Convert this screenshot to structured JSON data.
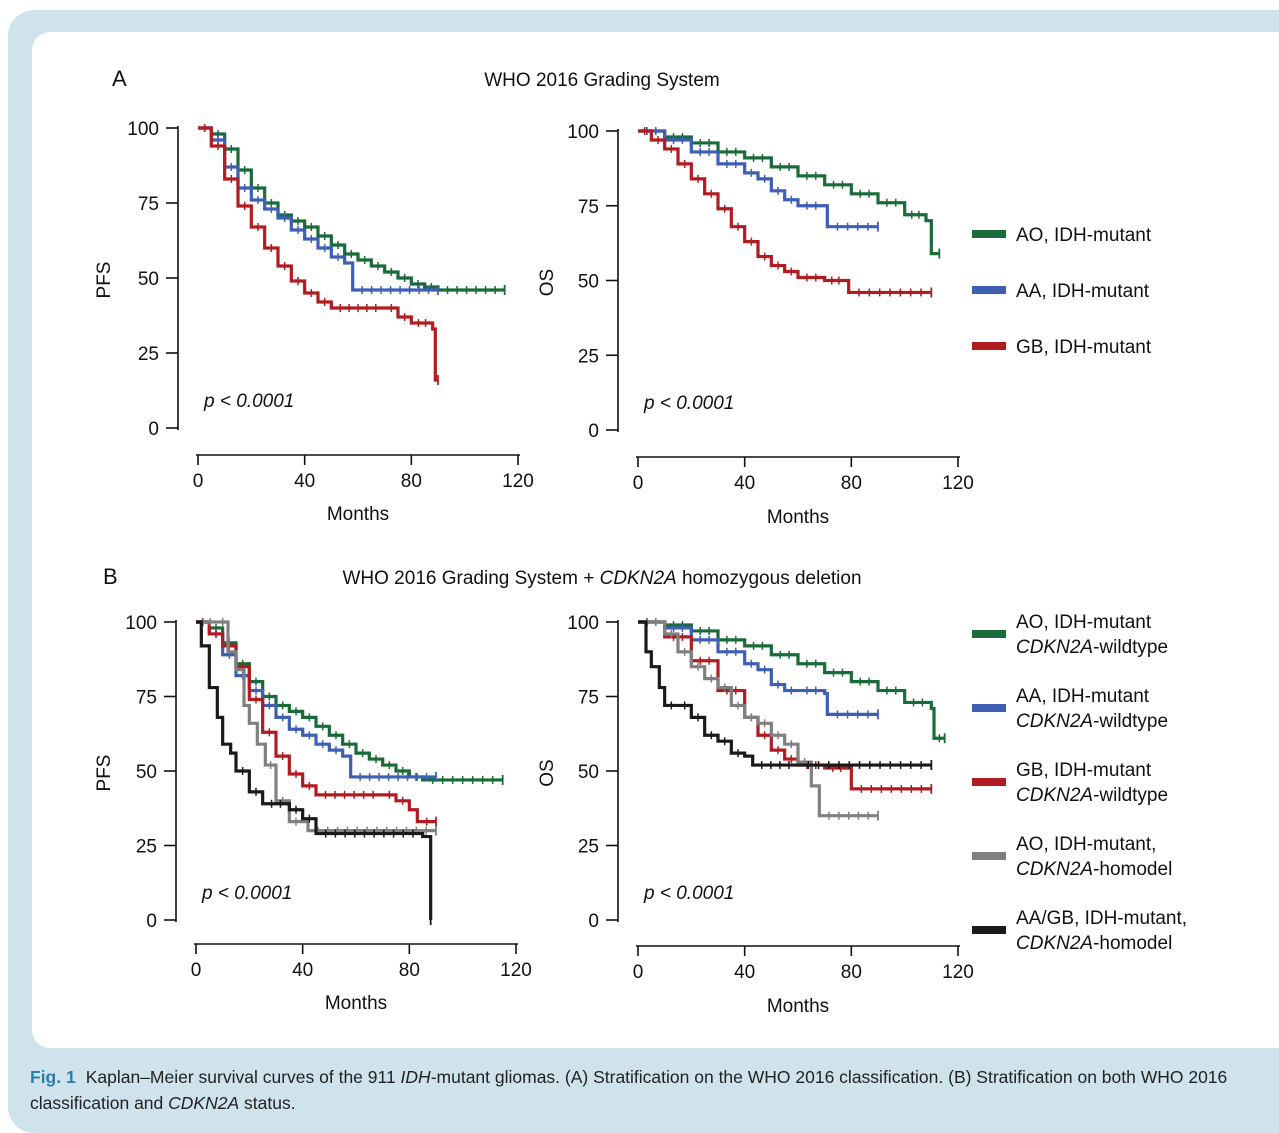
{
  "panels": {
    "A": {
      "letter": "A",
      "title": "WHO 2016 Grading System"
    },
    "B": {
      "letter": "B",
      "title_pre": "WHO 2016 Grading System + ",
      "title_gene": "CDKN2A",
      "title_post": " homozygous deletion"
    }
  },
  "legend_A": [
    {
      "line1": "AO, IDH-mutant",
      "color": "#1a6b3a"
    },
    {
      "line1": "AA, IDH-mutant",
      "color": "#3f5fb5"
    },
    {
      "line1": "GB, IDH-mutant",
      "color": "#b01c22"
    }
  ],
  "legend_B": [
    {
      "line1": "AO, IDH-mutant",
      "line2_gene": "CDKN2A",
      "line2_rest": "-wildtype",
      "color": "#1a6b3a"
    },
    {
      "line1": "AA, IDH-mutant",
      "line2_gene": "CDKN2A",
      "line2_rest": "-wildtype",
      "color": "#3f5fb5"
    },
    {
      "line1": "GB, IDH-mutant",
      "line2_gene": "CDKN2A",
      "line2_rest": "-wildtype",
      "color": "#b01c22"
    },
    {
      "line1": "AO, IDH-mutant,",
      "line2_gene": "CDKN2A",
      "line2_rest": "-homodel",
      "color": "#808080"
    },
    {
      "line1": "AA/GB, IDH-mutant,",
      "line2_gene": "CDKN2A",
      "line2_rest": "-homodel",
      "color": "#1a1a1a"
    }
  ],
  "caption": {
    "label": "Fig. 1",
    "part1": "Kaplan–Meier survival curves of the 911 ",
    "part1_italic": "IDH",
    "part2": "-mutant gliomas. (A) Stratification on the WHO 2016 classification. (B) Stratification on both WHO 2016 classification and ",
    "part2_italic": "CDKN2A",
    "part3": " status."
  },
  "chart_data": [
    {
      "id": "A-PFS",
      "type": "line",
      "xlabel": "Months",
      "ylabel": "PFS",
      "xlim": [
        0,
        120
      ],
      "ylim": [
        0,
        100
      ],
      "xticks": [
        "0",
        "40",
        "80",
        "120"
      ],
      "yticks": [
        "0",
        "25",
        "50",
        "75",
        "100"
      ],
      "annotation": "p < 0.0001",
      "series": [
        {
          "color": "#1a6b3a",
          "points": [
            [
              0,
              100
            ],
            [
              5,
              98
            ],
            [
              10,
              93
            ],
            [
              15,
              86
            ],
            [
              20,
              80
            ],
            [
              25,
              75
            ],
            [
              30,
              71
            ],
            [
              35,
              69
            ],
            [
              40,
              67
            ],
            [
              45,
              64
            ],
            [
              50,
              61
            ],
            [
              55,
              58
            ],
            [
              60,
              56
            ],
            [
              65,
              54
            ],
            [
              70,
              52
            ],
            [
              75,
              50
            ],
            [
              80,
              48
            ],
            [
              85,
              47
            ],
            [
              90,
              46
            ],
            [
              115,
              46
            ]
          ]
        },
        {
          "color": "#3f5fb5",
          "points": [
            [
              0,
              100
            ],
            [
              5,
              96
            ],
            [
              10,
              87
            ],
            [
              15,
              80
            ],
            [
              20,
              76
            ],
            [
              25,
              73
            ],
            [
              30,
              70
            ],
            [
              35,
              66
            ],
            [
              40,
              63
            ],
            [
              45,
              60
            ],
            [
              50,
              57
            ],
            [
              55,
              55
            ],
            [
              58,
              46
            ],
            [
              90,
              46
            ]
          ]
        },
        {
          "color": "#b01c22",
          "points": [
            [
              0,
              100
            ],
            [
              5,
              94
            ],
            [
              10,
              83
            ],
            [
              15,
              74
            ],
            [
              20,
              67
            ],
            [
              25,
              60
            ],
            [
              30,
              54
            ],
            [
              35,
              49
            ],
            [
              40,
              45
            ],
            [
              45,
              42
            ],
            [
              50,
              40
            ],
            [
              70,
              40
            ],
            [
              75,
              37
            ],
            [
              80,
              35
            ],
            [
              88,
              33
            ],
            [
              89,
              16
            ],
            [
              90,
              16
            ]
          ]
        }
      ]
    },
    {
      "id": "A-OS",
      "type": "line",
      "xlabel": "Months",
      "ylabel": "OS",
      "xlim": [
        0,
        120
      ],
      "ylim": [
        0,
        100
      ],
      "xticks": [
        "0",
        "40",
        "80",
        "120"
      ],
      "yticks": [
        "0",
        "25",
        "50",
        "75",
        "100"
      ],
      "annotation": "p < 0.0001",
      "series": [
        {
          "color": "#1a6b3a",
          "points": [
            [
              0,
              100
            ],
            [
              10,
              98
            ],
            [
              20,
              96
            ],
            [
              30,
              93
            ],
            [
              40,
              91
            ],
            [
              50,
              88
            ],
            [
              60,
              85
            ],
            [
              70,
              82
            ],
            [
              80,
              79
            ],
            [
              90,
              76
            ],
            [
              100,
              72
            ],
            [
              108,
              70
            ],
            [
              110,
              59
            ],
            [
              113,
              59
            ]
          ]
        },
        {
          "color": "#3f5fb5",
          "points": [
            [
              0,
              100
            ],
            [
              10,
              97
            ],
            [
              20,
              93
            ],
            [
              30,
              89
            ],
            [
              40,
              86
            ],
            [
              45,
              84
            ],
            [
              50,
              80
            ],
            [
              55,
              77
            ],
            [
              60,
              75
            ],
            [
              70,
              75
            ],
            [
              71,
              68
            ],
            [
              90,
              68
            ]
          ]
        },
        {
          "color": "#b01c22",
          "points": [
            [
              0,
              100
            ],
            [
              5,
              97
            ],
            [
              10,
              94
            ],
            [
              15,
              89
            ],
            [
              20,
              84
            ],
            [
              25,
              79
            ],
            [
              30,
              74
            ],
            [
              35,
              68
            ],
            [
              40,
              63
            ],
            [
              45,
              58
            ],
            [
              50,
              55
            ],
            [
              55,
              53
            ],
            [
              60,
              51
            ],
            [
              70,
              50
            ],
            [
              78,
              50
            ],
            [
              79,
              46
            ],
            [
              110,
              46
            ]
          ]
        }
      ]
    },
    {
      "id": "B-PFS",
      "type": "line",
      "xlabel": "Months",
      "ylabel": "PFS",
      "xlim": [
        0,
        120
      ],
      "ylim": [
        0,
        100
      ],
      "xticks": [
        "0",
        "40",
        "80",
        "120"
      ],
      "yticks": [
        "0",
        "25",
        "50",
        "75",
        "100"
      ],
      "annotation": "p < 0.0001",
      "series": [
        {
          "color": "#1a6b3a",
          "points": [
            [
              0,
              100
            ],
            [
              5,
              98
            ],
            [
              10,
              93
            ],
            [
              15,
              86
            ],
            [
              20,
              80
            ],
            [
              25,
              75
            ],
            [
              30,
              72
            ],
            [
              35,
              70
            ],
            [
              40,
              68
            ],
            [
              45,
              65
            ],
            [
              50,
              62
            ],
            [
              55,
              59
            ],
            [
              60,
              56
            ],
            [
              65,
              54
            ],
            [
              70,
              52
            ],
            [
              75,
              50
            ],
            [
              80,
              48
            ],
            [
              85,
              47
            ],
            [
              115,
              47
            ]
          ]
        },
        {
          "color": "#3f5fb5",
          "points": [
            [
              0,
              100
            ],
            [
              5,
              96
            ],
            [
              10,
              89
            ],
            [
              15,
              82
            ],
            [
              20,
              77
            ],
            [
              25,
              72
            ],
            [
              30,
              68
            ],
            [
              35,
              64
            ],
            [
              40,
              62
            ],
            [
              45,
              59
            ],
            [
              50,
              57
            ],
            [
              55,
              55
            ],
            [
              58,
              48
            ],
            [
              90,
              48
            ]
          ]
        },
        {
          "color": "#b01c22",
          "points": [
            [
              0,
              100
            ],
            [
              5,
              96
            ],
            [
              10,
              92
            ],
            [
              15,
              85
            ],
            [
              20,
              74
            ],
            [
              25,
              63
            ],
            [
              30,
              55
            ],
            [
              35,
              49
            ],
            [
              40,
              45
            ],
            [
              45,
              42
            ],
            [
              70,
              42
            ],
            [
              75,
              40
            ],
            [
              80,
              37
            ],
            [
              83,
              33
            ],
            [
              90,
              33
            ]
          ]
        },
        {
          "color": "#808080",
          "points": [
            [
              0,
              100
            ],
            [
              8,
              100
            ],
            [
              12,
              90
            ],
            [
              15,
              84
            ],
            [
              18,
              72
            ],
            [
              20,
              66
            ],
            [
              23,
              59
            ],
            [
              26,
              52
            ],
            [
              30,
              40
            ],
            [
              35,
              33
            ],
            [
              40,
              33
            ],
            [
              42,
              30
            ],
            [
              90,
              30
            ]
          ]
        },
        {
          "color": "#1a1a1a",
          "points": [
            [
              0,
              100
            ],
            [
              2,
              92
            ],
            [
              5,
              78
            ],
            [
              8,
              68
            ],
            [
              10,
              59
            ],
            [
              13,
              56
            ],
            [
              15,
              50
            ],
            [
              20,
              43
            ],
            [
              25,
              39
            ],
            [
              35,
              37
            ],
            [
              40,
              34
            ],
            [
              45,
              29
            ],
            [
              85,
              28
            ],
            [
              88,
              28
            ],
            [
              88,
              0
            ]
          ]
        }
      ]
    },
    {
      "id": "B-OS",
      "type": "line",
      "xlabel": "Months",
      "ylabel": "OS",
      "xlim": [
        0,
        120
      ],
      "ylim": [
        0,
        100
      ],
      "xticks": [
        "0",
        "40",
        "80",
        "120"
      ],
      "yticks": [
        "0",
        "25",
        "50",
        "75",
        "100"
      ],
      "annotation": "p < 0.0001",
      "series": [
        {
          "color": "#1a6b3a",
          "points": [
            [
              0,
              100
            ],
            [
              10,
              99
            ],
            [
              20,
              97
            ],
            [
              30,
              94
            ],
            [
              40,
              92
            ],
            [
              50,
              89
            ],
            [
              60,
              86
            ],
            [
              70,
              83
            ],
            [
              80,
              80
            ],
            [
              90,
              77
            ],
            [
              100,
              73
            ],
            [
              110,
              71
            ],
            [
              111,
              61
            ],
            [
              115,
              61
            ]
          ]
        },
        {
          "color": "#3f5fb5",
          "points": [
            [
              0,
              100
            ],
            [
              10,
              98
            ],
            [
              20,
              94
            ],
            [
              30,
              90
            ],
            [
              40,
              86
            ],
            [
              45,
              84
            ],
            [
              50,
              79
            ],
            [
              55,
              77
            ],
            [
              60,
              77
            ],
            [
              70,
              76
            ],
            [
              71,
              69
            ],
            [
              90,
              69
            ]
          ]
        },
        {
          "color": "#b01c22",
          "points": [
            [
              0,
              100
            ],
            [
              10,
              95
            ],
            [
              20,
              87
            ],
            [
              30,
              77
            ],
            [
              40,
              68
            ],
            [
              45,
              62
            ],
            [
              50,
              57
            ],
            [
              55,
              54
            ],
            [
              60,
              52
            ],
            [
              70,
              51
            ],
            [
              79,
              51
            ],
            [
              80,
              44
            ],
            [
              110,
              44
            ]
          ]
        },
        {
          "color": "#808080",
          "points": [
            [
              0,
              100
            ],
            [
              10,
              96
            ],
            [
              15,
              90
            ],
            [
              20,
              85
            ],
            [
              25,
              81
            ],
            [
              30,
              78
            ],
            [
              35,
              72
            ],
            [
              40,
              68
            ],
            [
              45,
              66
            ],
            [
              50,
              62
            ],
            [
              55,
              59
            ],
            [
              60,
              53
            ],
            [
              65,
              45
            ],
            [
              68,
              35
            ],
            [
              90,
              35
            ]
          ]
        },
        {
          "color": "#1a1a1a",
          "points": [
            [
              0,
              100
            ],
            [
              3,
              90
            ],
            [
              5,
              85
            ],
            [
              8,
              78
            ],
            [
              10,
              72
            ],
            [
              15,
              72
            ],
            [
              20,
              68
            ],
            [
              25,
              62
            ],
            [
              30,
              60
            ],
            [
              35,
              56
            ],
            [
              40,
              55
            ],
            [
              43,
              52
            ],
            [
              60,
              52
            ],
            [
              110,
              52
            ]
          ]
        }
      ]
    }
  ]
}
